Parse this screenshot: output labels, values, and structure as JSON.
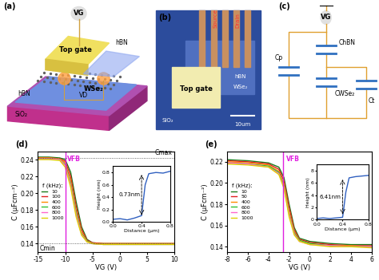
{
  "diagrams": {
    "a": {
      "label": "(a)",
      "gate_voltage": "VG",
      "top_gate": "Top gate",
      "channel": "WSe₂",
      "top_dielectric": "hBN",
      "bottom_dielectric": "hBN",
      "substrate": "SiO₂",
      "drain_voltage": "VD"
    },
    "b": {
      "label": "(b)",
      "source": "Source",
      "drain": "Drain",
      "dielectric": "hBN",
      "channel": "WSe₂",
      "top_gate": "Top gate",
      "substrate": "SiO₂",
      "scale_bar": "10um"
    },
    "c": {
      "label": "(c)",
      "source": "VG",
      "capacitors": [
        "ChBN",
        "Cp",
        "CWSe₂",
        "Ct"
      ]
    }
  },
  "chart_data": [
    {
      "type": "line",
      "panel": "(d)",
      "xlabel": "VG (V)",
      "ylabel": "C (μFcm⁻²)",
      "x": [
        -15,
        -13,
        -11,
        -10,
        -9,
        -8,
        -7,
        -6,
        -5,
        -3,
        0,
        5,
        10
      ],
      "xlim": [
        -15,
        10
      ],
      "xticks": [
        -15,
        -10,
        -5,
        0,
        5,
        10
      ],
      "ylim": [
        0.13,
        0.25
      ],
      "yticks": [
        0.14,
        0.16,
        0.18,
        {
          "value": 0.2,
          "label": "0.20"
        },
        0.22,
        0.24
      ],
      "legend": "center left",
      "legend_title": "f (kHz):",
      "series": [
        {
          "name": "10",
          "color": "#1a7a1a",
          "values": [
            0.243,
            0.243,
            0.242,
            0.24,
            0.225,
            0.19,
            0.16,
            0.145,
            0.141,
            0.14,
            0.14,
            0.14,
            0.14
          ]
        },
        {
          "name": "100",
          "color": "#e02020",
          "values": [
            0.242,
            0.242,
            0.241,
            0.238,
            0.22,
            0.185,
            0.157,
            0.144,
            0.141,
            0.14,
            0.14,
            0.14,
            0.14
          ]
        },
        {
          "name": "400",
          "color": "#ff8c00",
          "values": [
            0.242,
            0.242,
            0.241,
            0.236,
            0.215,
            0.18,
            0.154,
            0.143,
            0.14,
            0.14,
            0.14,
            0.14,
            0.14
          ]
        },
        {
          "name": "600",
          "color": "#30c030",
          "values": [
            0.241,
            0.241,
            0.24,
            0.234,
            0.212,
            0.178,
            0.152,
            0.143,
            0.14,
            0.139,
            0.139,
            0.139,
            0.139
          ]
        },
        {
          "name": "800",
          "color": "#ff66cc",
          "values": [
            0.241,
            0.241,
            0.24,
            0.233,
            0.21,
            0.175,
            0.151,
            0.142,
            0.14,
            0.139,
            0.139,
            0.139,
            0.139
          ]
        },
        {
          "name": "1000",
          "color": "#e0d000",
          "values": [
            0.24,
            0.24,
            0.239,
            0.231,
            0.207,
            0.172,
            0.15,
            0.142,
            0.14,
            0.139,
            0.139,
            0.139,
            0.139
          ]
        }
      ],
      "vlines": [
        {
          "text": "VFB",
          "x": -10,
          "color": "#e020e0"
        }
      ],
      "hlines": [
        {
          "text": "Cmax",
          "y": 0.242
        },
        {
          "text": "Cmin",
          "y": 0.14
        }
      ],
      "inset": {
        "type": "line",
        "xlabel": "Distance (μm)",
        "ylabel": "Height (nm)",
        "x": [
          0.0,
          0.1,
          0.2,
          0.3,
          0.4,
          0.45,
          0.5,
          0.6,
          0.7,
          0.8
        ],
        "values": [
          0.04,
          0.05,
          0.03,
          0.06,
          0.1,
          0.6,
          0.78,
          0.8,
          0.79,
          0.82
        ],
        "color": "#3060c0",
        "xlim": [
          0.0,
          0.8
        ],
        "xticks": [
          0.0,
          0.4,
          0.8
        ],
        "ylim": [
          0.0,
          0.9
        ],
        "yticks": [
          0.0,
          0.2,
          0.4,
          0.6,
          0.8
        ],
        "step": {
          "text": "0.73nm",
          "x": 0.4,
          "from": 0.07,
          "to": 0.8
        }
      }
    },
    {
      "type": "line",
      "panel": "(e)",
      "xlabel": "VG (V)",
      "ylabel": "C (μFcm⁻²)",
      "x": [
        -8,
        -6,
        -4,
        -3,
        -2.5,
        -2,
        -1.5,
        -1,
        0,
        2,
        4,
        6
      ],
      "xlim": [
        -8,
        6
      ],
      "xticks": [
        -8,
        -6,
        -4,
        -2,
        0,
        2,
        4,
        6
      ],
      "ylim": [
        0.135,
        0.23
      ],
      "yticks": [
        0.14,
        0.16,
        0.18,
        {
          "value": 0.2,
          "label": "0.20"
        },
        0.22
      ],
      "legend": "center left",
      "legend_title": "f (kHz):",
      "series": [
        {
          "name": "10",
          "color": "#1a7a1a",
          "values": [
            0.222,
            0.221,
            0.219,
            0.215,
            0.205,
            0.18,
            0.158,
            0.148,
            0.145,
            0.143,
            0.142,
            0.142
          ]
        },
        {
          "name": "50",
          "color": "#e02020",
          "values": [
            0.221,
            0.22,
            0.218,
            0.213,
            0.202,
            0.177,
            0.156,
            0.147,
            0.144,
            0.142,
            0.141,
            0.141
          ]
        },
        {
          "name": "400",
          "color": "#ff8c00",
          "values": [
            0.22,
            0.219,
            0.217,
            0.211,
            0.199,
            0.173,
            0.154,
            0.146,
            0.143,
            0.141,
            0.141,
            0.14
          ]
        },
        {
          "name": "600",
          "color": "#30c030",
          "values": [
            0.219,
            0.218,
            0.216,
            0.21,
            0.197,
            0.171,
            0.153,
            0.146,
            0.143,
            0.141,
            0.14,
            0.14
          ]
        },
        {
          "name": "800",
          "color": "#ff66cc",
          "values": [
            0.219,
            0.218,
            0.215,
            0.209,
            0.196,
            0.17,
            0.152,
            0.145,
            0.142,
            0.141,
            0.14,
            0.14
          ]
        },
        {
          "name": "1000",
          "color": "#e0d000",
          "values": [
            0.218,
            0.217,
            0.215,
            0.208,
            0.195,
            0.168,
            0.151,
            0.145,
            0.142,
            0.14,
            0.14,
            0.139
          ]
        }
      ],
      "vlines": [
        {
          "text": "VFB",
          "x": -2.6,
          "color": "#e020e0"
        }
      ],
      "hlines": [],
      "inset": {
        "type": "line",
        "xlabel": "Distance (μm)",
        "ylabel": "Height (nm)",
        "x": [
          0.0,
          0.1,
          0.2,
          0.3,
          0.4,
          0.45,
          0.5,
          0.6,
          0.7,
          0.8
        ],
        "values": [
          0.2,
          0.3,
          0.2,
          0.3,
          0.4,
          4.5,
          6.8,
          7.0,
          7.1,
          7.2
        ],
        "color": "#3060c0",
        "xlim": [
          0.0,
          0.8
        ],
        "xticks": [
          0.0,
          0.4,
          0.8
        ],
        "ylim": [
          0,
          9
        ],
        "yticks": [
          0,
          2,
          4,
          6,
          8
        ],
        "step": {
          "text": "6.41nm",
          "x": 0.4,
          "from": 0.5,
          "to": 6.9
        }
      }
    }
  ]
}
